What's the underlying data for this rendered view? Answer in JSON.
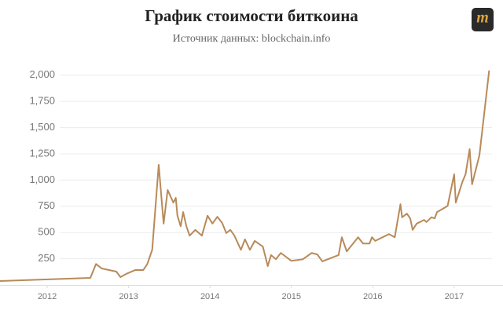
{
  "chart_data": {
    "type": "line",
    "title": "График стоимости биткоина",
    "subtitle": "Источник данных: blockchain.info",
    "logo": "m",
    "color": "#b88a5a",
    "grid": true,
    "xlim": [
      2011.42,
      2017.6
    ],
    "xticks": [
      2012,
      2013,
      2014,
      2015,
      2016,
      2017
    ],
    "ylim": [
      0,
      2100
    ],
    "yticks": [
      250,
      500,
      750,
      {
        "value": 1000,
        "label": "1,000"
      },
      {
        "value": 1250,
        "label": "1,250"
      },
      {
        "value": 1500,
        "label": "1,500"
      },
      {
        "value": 1750,
        "label": "1,750"
      },
      {
        "value": 2000,
        "label": "2,000"
      }
    ],
    "x": [
      2011.42,
      2012.53,
      2012.6,
      2012.67,
      2012.85,
      2012.9,
      2012.97,
      2013.08,
      2013.18,
      2013.23,
      2013.29,
      2013.37,
      2013.43,
      2013.48,
      2013.55,
      2013.58,
      2013.6,
      2013.64,
      2013.67,
      2013.71,
      2013.75,
      2013.82,
      2013.9,
      2013.97,
      2014.03,
      2014.09,
      2014.15,
      2014.2,
      2014.25,
      2014.3,
      2014.38,
      2014.43,
      2014.49,
      2014.55,
      2014.65,
      2014.71,
      2014.75,
      2014.81,
      2014.87,
      2015.0,
      2015.14,
      2015.25,
      2015.32,
      2015.38,
      2015.58,
      2015.62,
      2015.68,
      2015.82,
      2015.88,
      2015.96,
      2015.99,
      2016.03,
      2016.2,
      2016.27,
      2016.34,
      2016.36,
      2016.42,
      2016.46,
      2016.49,
      2016.54,
      2016.58,
      2016.63,
      2016.66,
      2016.72,
      2016.76,
      2016.79,
      2016.88,
      2016.92,
      2017.0,
      2017.02,
      2017.1,
      2017.14,
      2017.19,
      2017.22,
      2017.31,
      2017.43
    ],
    "values": [
      37,
      67,
      200,
      157,
      127,
      75,
      105,
      142,
      142,
      200,
      335,
      1145,
      585,
      905,
      785,
      830,
      660,
      560,
      695,
      560,
      470,
      525,
      470,
      660,
      585,
      650,
      590,
      495,
      525,
      470,
      335,
      435,
      335,
      420,
      365,
      180,
      285,
      245,
      305,
      230,
      245,
      305,
      290,
      225,
      285,
      455,
      320,
      455,
      395,
      395,
      455,
      420,
      485,
      455,
      770,
      645,
      680,
      635,
      525,
      585,
      600,
      620,
      600,
      645,
      635,
      695,
      735,
      755,
      1055,
      785,
      980,
      1055,
      1295,
      960,
      1235,
      2045
    ]
  }
}
